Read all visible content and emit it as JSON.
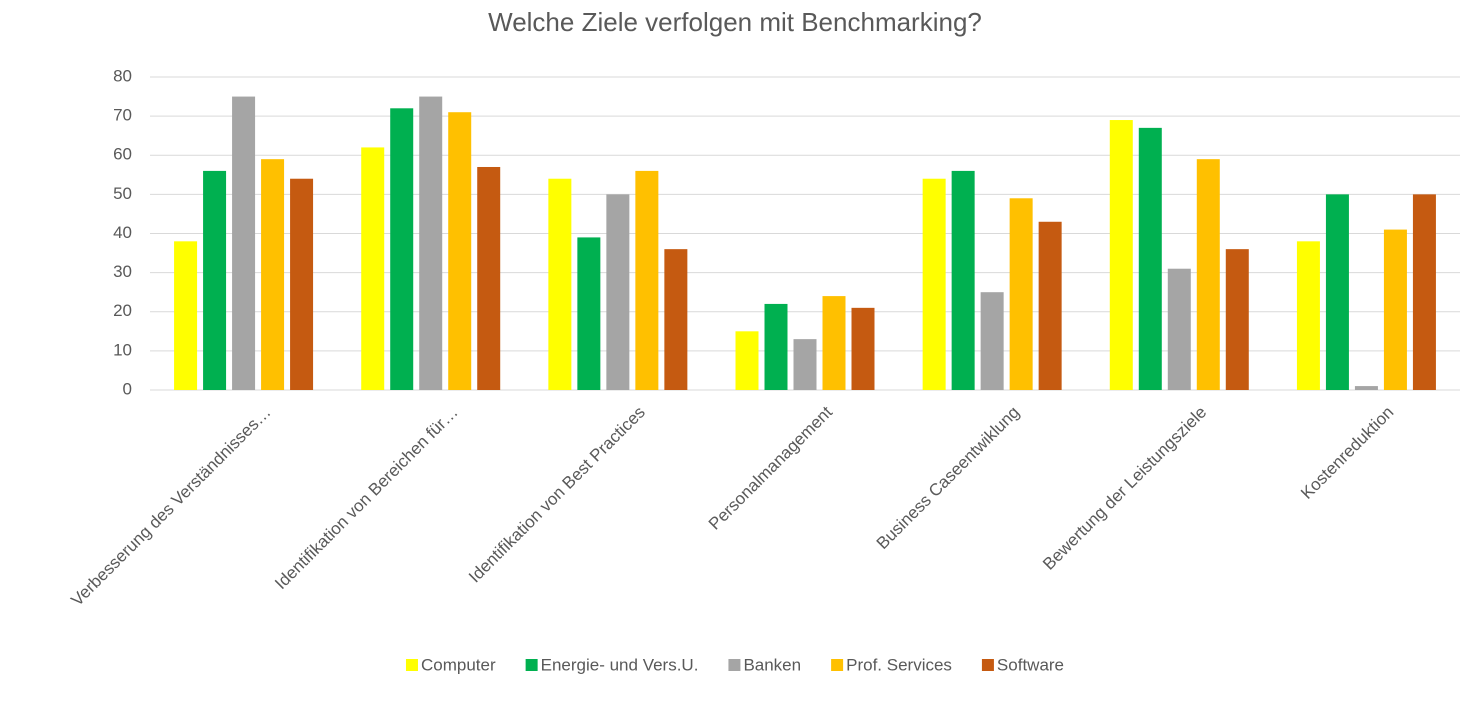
{
  "chart_data": {
    "type": "bar",
    "title": "Welche Ziele verfolgen mit Benchmarking?",
    "categories": [
      "Verbesserung des Verständnisses…",
      "Identifikation von Bereichen für…",
      "Identifikation von Best Practices",
      "Personalmanagement",
      "Business Caseentwiklung",
      "Bewertung der Leistungsziele",
      "Kostenreduktion"
    ],
    "series": [
      {
        "name": "Computer",
        "color": "#ffff00",
        "values": [
          38,
          62,
          54,
          15,
          54,
          69,
          38
        ]
      },
      {
        "name": "Energie- und Vers.U.",
        "color": "#00b050",
        "values": [
          56,
          72,
          39,
          22,
          56,
          67,
          50
        ]
      },
      {
        "name": "Banken",
        "color": "#a5a5a5",
        "values": [
          75,
          75,
          50,
          13,
          25,
          31,
          1
        ]
      },
      {
        "name": "Prof. Services",
        "color": "#ffc000",
        "values": [
          59,
          71,
          56,
          24,
          49,
          59,
          41
        ]
      },
      {
        "name": "Software",
        "color": "#c55a11",
        "values": [
          54,
          57,
          36,
          21,
          43,
          36,
          50
        ]
      }
    ],
    "ylim": [
      0,
      80
    ],
    "yticks": [
      0,
      10,
      20,
      30,
      40,
      50,
      60,
      70,
      80
    ],
    "grid": true,
    "legend": "bottom"
  }
}
